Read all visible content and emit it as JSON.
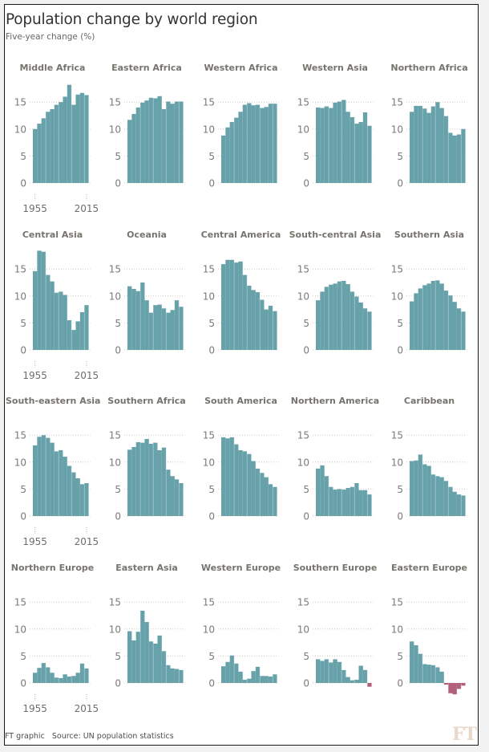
{
  "header": {
    "title": "Population change by world region",
    "subtitle": "Five-year change (%)"
  },
  "footer": {
    "credit": "FT graphic",
    "source": "Source: UN population statistics",
    "logo": "FT"
  },
  "colors": {
    "positive": "#67a1aa",
    "negative": "#b25f7c",
    "gridline": "#d6c8bd",
    "bar_divider": "#d9e8ea"
  },
  "chart_data": {
    "type": "bar",
    "title": "Population change by world region",
    "subtitle": "Five-year change (%)",
    "layout": "small-multiples 5 columns x 4 rows",
    "x": [
      1955,
      1960,
      1965,
      1970,
      1975,
      1980,
      1985,
      1990,
      1995,
      2000,
      2005,
      2010,
      2015
    ],
    "x_tick_labels": [
      "1955",
      "2015"
    ],
    "y_tick_labels": [
      "0",
      "5",
      "10",
      "15"
    ],
    "ylim": [
      -3,
      19
    ],
    "grid": true,
    "xlabel": "",
    "ylabel": "Five-year change (%)",
    "series": [
      {
        "name": "Middle Africa",
        "values": [
          10,
          11,
          12,
          13.2,
          13.7,
          14.5,
          15,
          16,
          18.2,
          14.5,
          16.4,
          16.7,
          16.3
        ]
      },
      {
        "name": "Eastern Africa",
        "values": [
          11.7,
          12.8,
          14,
          14.9,
          15.3,
          15.8,
          15.7,
          16.1,
          13.7,
          15.1,
          14.7,
          15.1,
          15.1
        ]
      },
      {
        "name": "Western Africa",
        "values": [
          8.8,
          10.3,
          11.3,
          12.1,
          13.2,
          14.5,
          14.8,
          14.4,
          14.5,
          13.9,
          14.1,
          14.7,
          14.7
        ]
      },
      {
        "name": "Western Asia",
        "values": [
          14,
          13.9,
          14.2,
          13.9,
          14.9,
          15.1,
          15.4,
          13.2,
          12.2,
          11,
          11.3,
          13.1,
          10.6
        ]
      },
      {
        "name": "Northern Africa",
        "values": [
          13.2,
          14.3,
          14.3,
          13.8,
          13,
          14.2,
          15,
          13.9,
          12.4,
          9.3,
          8.8,
          9,
          10
        ]
      },
      {
        "name": "Central Asia",
        "values": [
          14.6,
          18.4,
          18.2,
          13.9,
          12.7,
          10.6,
          10.8,
          10.2,
          5.5,
          3.7,
          5.3,
          7,
          8.3
        ]
      },
      {
        "name": "Oceania",
        "values": [
          11.8,
          11.3,
          10.9,
          12.5,
          9.2,
          6.9,
          8.3,
          8.4,
          7.7,
          6.9,
          7.4,
          9.2,
          8
        ]
      },
      {
        "name": "Central America",
        "values": [
          15.9,
          16.7,
          16.7,
          16.2,
          16.4,
          13.9,
          11.9,
          11.1,
          10.7,
          9.3,
          7.5,
          8.2,
          7.2
        ]
      },
      {
        "name": "South-central Asia",
        "values": [
          9.2,
          10.8,
          11.7,
          12.1,
          12.3,
          12.7,
          12.8,
          12.2,
          10.8,
          9.9,
          8.8,
          7.7,
          7.1
        ]
      },
      {
        "name": "Southern Asia",
        "values": [
          9,
          10.5,
          11.4,
          12,
          12.3,
          12.8,
          12.9,
          12.3,
          11,
          10.1,
          8.9,
          7.7,
          7.1
        ]
      },
      {
        "name": "South-eastern Asia",
        "values": [
          13.1,
          14.7,
          15,
          14.5,
          13.6,
          12,
          12.2,
          11,
          9.3,
          8.1,
          7,
          5.9,
          6.1
        ]
      },
      {
        "name": "Southern Africa",
        "values": [
          12.3,
          12.8,
          13.7,
          13.6,
          14.3,
          13.4,
          13.6,
          12.2,
          12.7,
          8.6,
          7.4,
          6.8,
          6.1
        ]
      },
      {
        "name": "South America",
        "values": [
          14.6,
          14.4,
          14.6,
          13.3,
          12.2,
          12,
          11.5,
          10.2,
          8.8,
          8,
          7.2,
          5.9,
          5.4
        ]
      },
      {
        "name": "Northern America",
        "values": [
          8.8,
          9.4,
          7.4,
          5.4,
          4.9,
          5,
          4.9,
          5.2,
          5.4,
          6.1,
          4.8,
          4.8,
          4
        ]
      },
      {
        "name": "Caribbean",
        "values": [
          10.2,
          10.3,
          11.4,
          9.6,
          9.3,
          7.7,
          7.4,
          7.2,
          6.5,
          5.4,
          4.5,
          4,
          3.8
        ]
      },
      {
        "name": "Northern Europe",
        "values": [
          1.9,
          2.8,
          3.7,
          2.9,
          1.9,
          1,
          0.9,
          1.6,
          1.2,
          1.3,
          1.9,
          3.6,
          2.7
        ]
      },
      {
        "name": "Eastern Asia",
        "values": [
          9.6,
          7.9,
          9.5,
          13.4,
          11.3,
          7.7,
          7.3,
          8.8,
          5.9,
          3.3,
          2.7,
          2.6,
          2.4
        ]
      },
      {
        "name": "Western Europe",
        "values": [
          3.1,
          3.9,
          5.1,
          3.6,
          2.1,
          0.6,
          0.8,
          2.2,
          3,
          1.3,
          1.3,
          1.2,
          1.6
        ]
      },
      {
        "name": "Southern Europe",
        "values": [
          4.4,
          4.1,
          4.4,
          3.8,
          4.4,
          3.9,
          2.4,
          1.1,
          0.5,
          0.6,
          3.2,
          2.4,
          -0.7
        ]
      },
      {
        "name": "Eastern Europe",
        "values": [
          7.7,
          7,
          5.4,
          3.5,
          3.4,
          3.3,
          2.9,
          2.1,
          -0.3,
          -1.9,
          -2.1,
          -1.1,
          -0.5
        ]
      }
    ]
  }
}
